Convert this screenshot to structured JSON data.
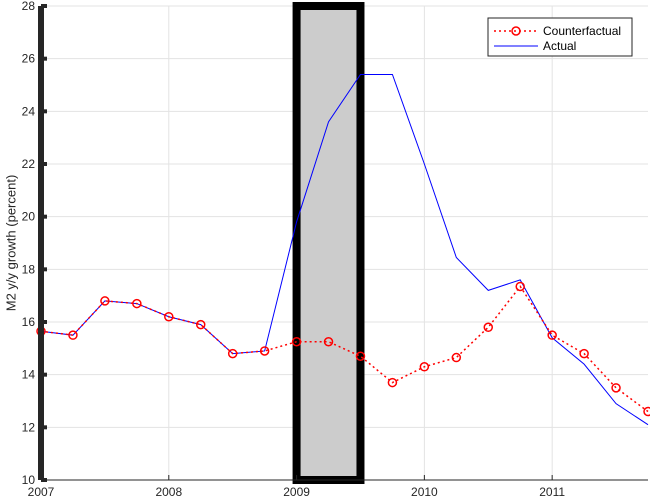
{
  "chart_data": {
    "type": "line",
    "title": "",
    "xlabel": "",
    "ylabel": "M2 y/y growth (percent)",
    "xlim": [
      2007,
      2011.75
    ],
    "ylim": [
      10,
      28
    ],
    "x_ticks": [
      2007,
      2008,
      2009,
      2010,
      2011
    ],
    "y_ticks": [
      10,
      12,
      14,
      16,
      18,
      20,
      22,
      24,
      26,
      28
    ],
    "grid": true,
    "legend_position": "top-right",
    "shaded_region": {
      "x_start": 2009.0,
      "x_end": 2009.5,
      "fill": "#cccccc",
      "border": "#000000"
    },
    "series": [
      {
        "name": "Counterfactual",
        "style": "dotted-with-circles",
        "color": "#ff0000",
        "x": [
          2007.0,
          2007.25,
          2007.5,
          2007.75,
          2008.0,
          2008.25,
          2008.5,
          2008.75,
          2009.0,
          2009.25,
          2009.5,
          2009.75,
          2010.0,
          2010.25,
          2010.5,
          2010.75,
          2011.0,
          2011.25,
          2011.5,
          2011.75
        ],
        "values": [
          15.65,
          15.5,
          16.8,
          16.7,
          16.2,
          15.9,
          14.8,
          14.9,
          15.25,
          15.25,
          14.7,
          13.7,
          14.3,
          14.65,
          15.8,
          17.35,
          15.5,
          14.8,
          13.5,
          12.6
        ]
      },
      {
        "name": "Actual",
        "style": "solid",
        "color": "#0000ff",
        "x": [
          2007.0,
          2007.25,
          2007.5,
          2007.75,
          2008.0,
          2008.25,
          2008.5,
          2008.75,
          2009.0,
          2009.25,
          2009.5,
          2009.75,
          2010.0,
          2010.25,
          2010.5,
          2010.75,
          2011.0,
          2011.25,
          2011.5,
          2011.75
        ],
        "values": [
          15.65,
          15.5,
          16.8,
          16.7,
          16.2,
          15.9,
          14.8,
          14.9,
          19.8,
          23.6,
          25.4,
          25.4,
          22.0,
          18.45,
          17.2,
          17.6,
          15.4,
          14.4,
          12.9,
          12.1
        ]
      }
    ]
  }
}
